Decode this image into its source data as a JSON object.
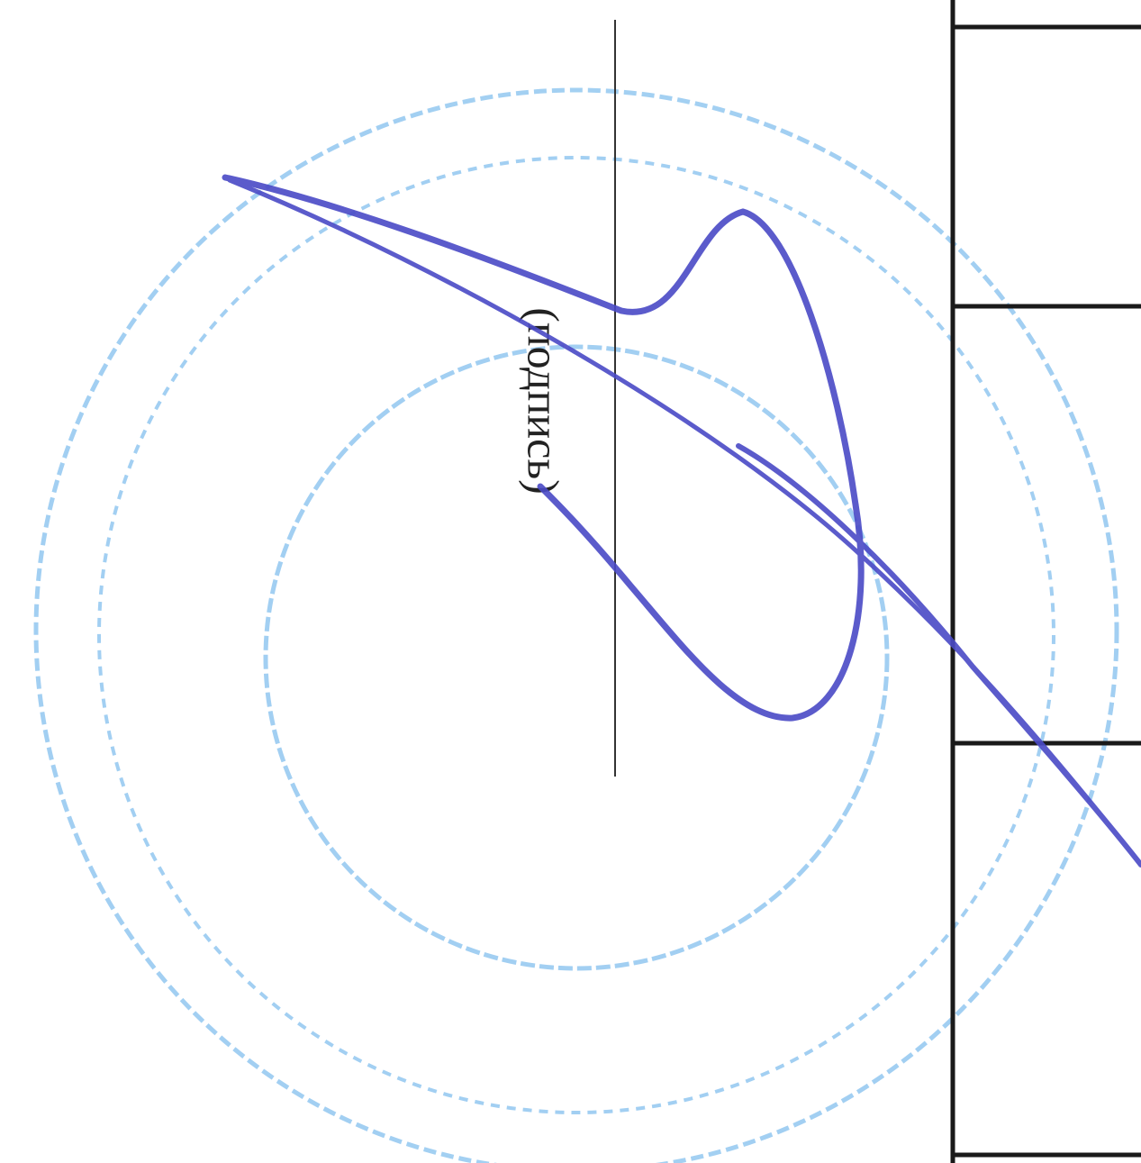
{
  "caption": "(подпись)"
}
